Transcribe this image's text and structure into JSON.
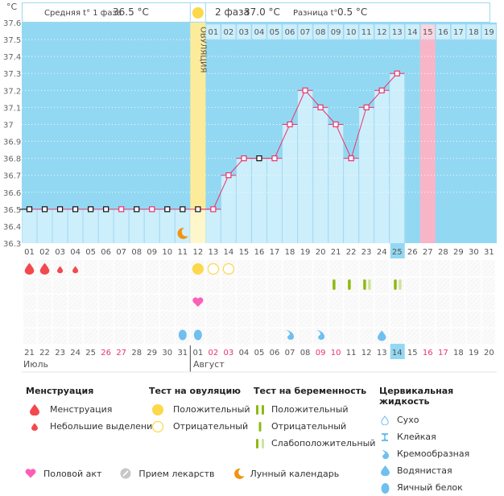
{
  "header": {
    "phase1_label": "Средняя t° 1 фаза",
    "phase1_value": "36.5 °C",
    "phase2_label": "2 фаза",
    "phase2_value": "37.0 °C",
    "diff_label": "Разница t°",
    "diff_value": "0.5 °C",
    "ovulation_label": "ОВУЛЯЦИЯ"
  },
  "colors": {
    "sky": "#93d8f2",
    "bar": "#cdeefb",
    "ovulation": "#fdeb9c",
    "ovulation_light": "#fff7cc",
    "expected_period": "#f9b5c8",
    "line": "#e8336b",
    "today": "#93d8f2",
    "period": "#f2484e",
    "test_positive": "#fcd84a",
    "preg_test": "#8dba0f",
    "preg_test_faint": "#cfe3a0",
    "sex": "#fc5fb8",
    "fluid": "#6fbfef",
    "moon": "#f29311",
    "weekend": "#e8336b"
  },
  "chart_data": {
    "type": "line",
    "title": "",
    "ylabel": "°C",
    "ylim": [
      36.3,
      37.6
    ],
    "yticks": [
      "37.6",
      "37.5",
      "37.4",
      "37.3",
      "37.2",
      "37.1",
      "37",
      "36.9",
      "36.8",
      "36.7",
      "36.6",
      "36.5",
      "36.4",
      "36.3"
    ],
    "cycle_days": [
      "01",
      "02",
      "03",
      "04",
      "05",
      "06",
      "07",
      "08",
      "09",
      "10",
      "11",
      "12",
      "13",
      "14",
      "15",
      "16",
      "17",
      "18",
      "19",
      "20",
      "21",
      "22",
      "23",
      "24",
      "25",
      "26",
      "27",
      "28",
      "29",
      "30",
      "31"
    ],
    "post_ovulation_days": [
      "01",
      "02",
      "03",
      "04",
      "05",
      "06",
      "07",
      "08",
      "09",
      "10",
      "11",
      "12",
      "13",
      "14",
      "15",
      "16",
      "17",
      "18",
      "19"
    ],
    "temperatures": [
      36.5,
      36.5,
      36.5,
      36.5,
      36.5,
      36.5,
      36.5,
      36.5,
      36.5,
      36.5,
      36.5,
      36.5,
      36.5,
      36.7,
      36.8,
      36.8,
      36.8,
      37.0,
      37.2,
      37.1,
      37.0,
      36.8,
      37.1,
      37.2,
      37.3
    ],
    "marker_types": [
      "black",
      "black",
      "black",
      "black",
      "black",
      "black",
      "pink",
      "black",
      "pink",
      "black",
      "black",
      "black",
      "pink",
      "pink",
      "pink",
      "black",
      "pink",
      "pink",
      "pink",
      "pink",
      "pink",
      "pink",
      "pink",
      "pink",
      "pink"
    ],
    "ovulation_day": 12,
    "expected_period_day": 27,
    "current_day": 25,
    "cover_line": 36.5,
    "calendar_dates": [
      "21",
      "22",
      "23",
      "24",
      "25",
      "26",
      "27",
      "28",
      "29",
      "30",
      "31",
      "01",
      "02",
      "03",
      "04",
      "05",
      "06",
      "07",
      "08",
      "09",
      "10",
      "11",
      "12",
      "13",
      "14",
      "15",
      "16",
      "17",
      "18",
      "19",
      "20"
    ],
    "weekend_dates_idx": [
      5,
      6,
      12,
      13,
      19,
      20,
      26,
      27
    ],
    "months": [
      "Июль",
      "Август"
    ],
    "month_break_after_idx": 11,
    "lunar_day": 11
  },
  "events": {
    "period": [
      {
        "day": 1,
        "type": "heavy"
      },
      {
        "day": 2,
        "type": "heavy"
      },
      {
        "day": 3,
        "type": "light"
      },
      {
        "day": 4,
        "type": "light"
      }
    ],
    "ovulation_tests": [
      {
        "day": 12,
        "type": "positive"
      },
      {
        "day": 13,
        "type": "negative"
      },
      {
        "day": 14,
        "type": "negative"
      }
    ],
    "pregnancy_tests": [
      {
        "day": 21,
        "type": "negative"
      },
      {
        "day": 22,
        "type": "negative"
      },
      {
        "day": 23,
        "type": "faint"
      },
      {
        "day": 25,
        "type": "faint"
      }
    ],
    "sex": [
      12
    ],
    "fluid": [
      {
        "day": 11,
        "type": "egg-white"
      },
      {
        "day": 12,
        "type": "egg-white"
      },
      {
        "day": 18,
        "type": "creamy"
      },
      {
        "day": 20,
        "type": "creamy"
      },
      {
        "day": 24,
        "type": "watery"
      }
    ]
  },
  "legend": {
    "menstruation": {
      "title": "Менструация",
      "items": [
        "Менструация",
        "Небольшие выделения"
      ]
    },
    "ovulation_test": {
      "title": "Тест на овуляцию",
      "items": [
        "Положительный",
        "Отрицательный"
      ]
    },
    "pregnancy_test": {
      "title": "Тест на беременность",
      "items": [
        "Положительный",
        "Отрицательный",
        "Слабоположительный"
      ]
    },
    "cervical_fluid": {
      "title": "Цервикальная жидкость",
      "items": [
        "Сухо",
        "Клейкая",
        "Кремообразная",
        "Водянистая",
        "Яичный белок"
      ]
    },
    "other": [
      "Половой акт",
      "Прием лекарств",
      "Лунный календарь"
    ]
  }
}
